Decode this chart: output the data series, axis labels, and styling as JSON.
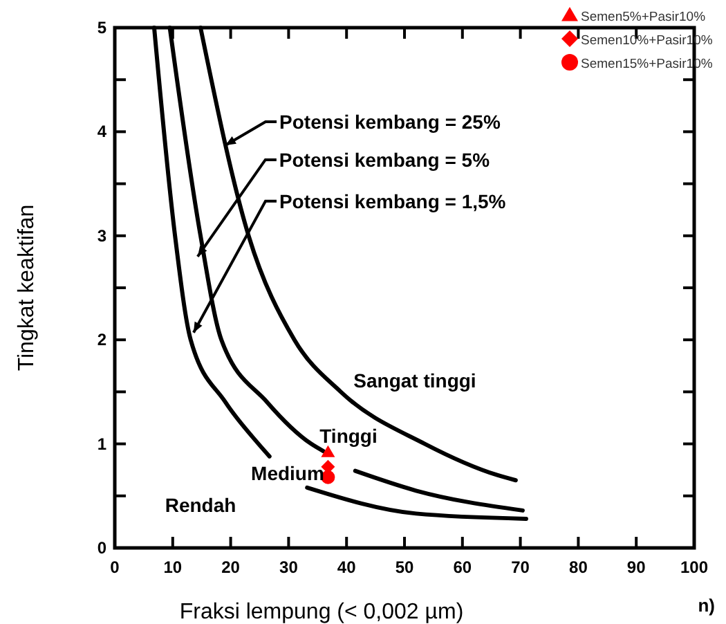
{
  "chart_data": {
    "type": "line",
    "xlabel": "Fraksi lempung (< 0,002 µm)",
    "ylabel": "Tingkat keaktifan",
    "xlim": [
      0,
      100
    ],
    "ylim": [
      0,
      5
    ],
    "xticks": [
      0,
      10,
      20,
      30,
      40,
      50,
      60,
      70,
      80,
      90,
      100
    ],
    "yticks": [
      0,
      {
        "value": 0.5,
        "label": null
      },
      1,
      {
        "value": 1.5,
        "label": null
      },
      2,
      {
        "value": 2.5,
        "label": null
      },
      3,
      {
        "value": 3.5,
        "label": null
      },
      4,
      {
        "value": 4.5,
        "label": null
      },
      5
    ],
    "legend": "top right",
    "series": [
      {
        "color": "#000000",
        "marker": "none",
        "x": [
          6.8,
          10.4,
          13.1,
          19.1,
          24.8,
          26.7,
          30,
          33.2,
          52,
          71
        ],
        "values": [
          5,
          3,
          2,
          1.4,
          1,
          0.88,
          null,
          0.58,
          0.33,
          0.28
        ]
      },
      {
        "color": "#000000",
        "marker": "none",
        "x": [
          9.5,
          14.8,
          18.4,
          26.3,
          33.9,
          36,
          38,
          41.5,
          52,
          70.4
        ],
        "values": [
          5,
          3,
          2,
          1.4,
          1,
          0.93,
          null,
          0.74,
          0.55,
          0.36
        ]
      },
      {
        "color": "#000000",
        "marker": "none",
        "x": [
          14.8,
          23.1,
          31,
          39,
          53.5,
          66,
          69.2
        ],
        "values": [
          5,
          3,
          2,
          1.5,
          1,
          0.7,
          0.65
        ]
      },
      {
        "type": "scatter",
        "name": "Semen5%+Pasir10%",
        "color": "#ff0000",
        "marker": "triangle",
        "x": [
          36.8
        ],
        "values": [
          0.92
        ]
      },
      {
        "type": "scatter",
        "name": "Semen10%+Pasir10%",
        "color": "#ff0000",
        "marker": "diamond",
        "x": [
          36.8
        ],
        "values": [
          0.78
        ]
      },
      {
        "type": "scatter",
        "name": "Semen15%+Pasir10%",
        "color": "#ff0000",
        "marker": "circle",
        "x": [
          36.8
        ],
        "values": [
          0.68
        ]
      }
    ],
    "annotations": [
      {
        "text": "Potensi kembang = 25%",
        "x": 19.1,
        "y": 3.87
      },
      {
        "text": "Potensi kembang = 5%",
        "x": 14.3,
        "y": 2.8
      },
      {
        "text": "Potensi kembang = 1,5%",
        "x": 13.6,
        "y": 2.07
      },
      "Sangat tinggi",
      "Tinggi",
      "Medium",
      "Rendah",
      "n)"
    ]
  }
}
